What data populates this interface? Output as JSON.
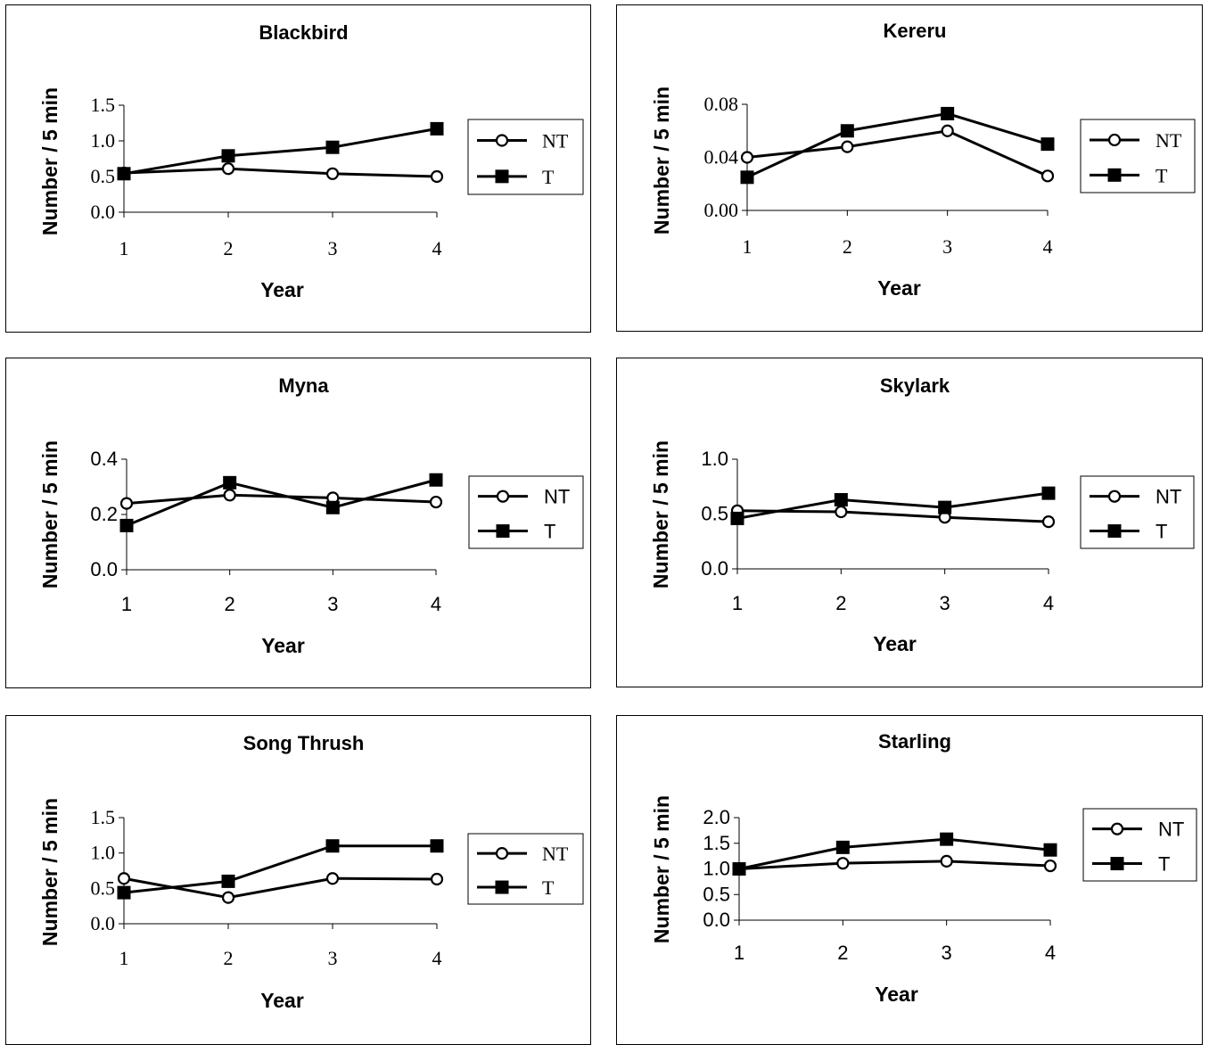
{
  "chart_data": [
    {
      "type": "line",
      "title": "Blackbird",
      "xlabel": "Year",
      "ylabel": "Number / 5 min",
      "x": [
        1,
        2,
        3,
        4
      ],
      "yticks": [
        "0.0",
        "0.5",
        "1.0",
        "1.5"
      ],
      "ylim": [
        0,
        1.5
      ],
      "series": [
        {
          "name": "NT",
          "marker": "open-circle",
          "values": [
            0.55,
            0.61,
            0.54,
            0.5
          ]
        },
        {
          "name": "T",
          "marker": "filled-square",
          "values": [
            0.54,
            0.79,
            0.91,
            1.17
          ]
        }
      ],
      "legend": "right"
    },
    {
      "type": "line",
      "title": "Kereru",
      "xlabel": "Year",
      "ylabel": "Number / 5 min",
      "x": [
        1,
        2,
        3,
        4
      ],
      "yticks": [
        "0.00",
        "0.04",
        "0.08"
      ],
      "ylim": [
        0,
        0.08
      ],
      "series": [
        {
          "name": "NT",
          "marker": "open-circle",
          "values": [
            0.04,
            0.048,
            0.06,
            0.026
          ]
        },
        {
          "name": "T",
          "marker": "filled-square",
          "values": [
            0.025,
            0.06,
            0.073,
            0.05
          ]
        }
      ],
      "legend": "right"
    },
    {
      "type": "line",
      "title": "Myna",
      "xlabel": "Year",
      "ylabel": "Number / 5 min",
      "x": [
        1,
        2,
        3,
        4
      ],
      "yticks": [
        "0.0",
        "0.2",
        "0.4"
      ],
      "ylim": [
        0,
        0.4
      ],
      "series": [
        {
          "name": "NT",
          "marker": "open-circle",
          "values": [
            0.24,
            0.27,
            0.26,
            0.245
          ]
        },
        {
          "name": "T",
          "marker": "filled-square",
          "values": [
            0.16,
            0.315,
            0.225,
            0.325
          ]
        }
      ],
      "legend": "right"
    },
    {
      "type": "line",
      "title": "Skylark",
      "xlabel": "Year",
      "ylabel": "Number / 5 min",
      "x": [
        1,
        2,
        3,
        4
      ],
      "yticks": [
        "0.0",
        "0.5",
        "1.0"
      ],
      "ylim": [
        0,
        1.0
      ],
      "series": [
        {
          "name": "NT",
          "marker": "open-circle",
          "values": [
            0.53,
            0.52,
            0.47,
            0.43
          ]
        },
        {
          "name": "T",
          "marker": "filled-square",
          "values": [
            0.46,
            0.63,
            0.56,
            0.69
          ]
        }
      ],
      "legend": "right"
    },
    {
      "type": "line",
      "title": "Song Thrush",
      "xlabel": "Year",
      "ylabel": "Number / 5 min",
      "x": [
        1,
        2,
        3,
        4
      ],
      "yticks": [
        "0.0",
        "0.5",
        "1.0",
        "1.5"
      ],
      "ylim": [
        0,
        1.5
      ],
      "series": [
        {
          "name": "NT",
          "marker": "open-circle",
          "values": [
            0.64,
            0.37,
            0.64,
            0.63
          ]
        },
        {
          "name": "T",
          "marker": "filled-square",
          "values": [
            0.44,
            0.6,
            1.1,
            1.1
          ]
        }
      ],
      "legend": "right"
    },
    {
      "type": "line",
      "title": "Starling",
      "xlabel": "Year",
      "ylabel": "Number / 5 min",
      "x": [
        1,
        2,
        3,
        4
      ],
      "yticks": [
        "0.0",
        "0.5",
        "1.0",
        "1.5",
        "2.0"
      ],
      "ylim": [
        0,
        2.0
      ],
      "series": [
        {
          "name": "NT",
          "marker": "open-circle",
          "values": [
            1.0,
            1.11,
            1.15,
            1.06
          ]
        },
        {
          "name": "T",
          "marker": "filled-square",
          "values": [
            1.0,
            1.42,
            1.58,
            1.37
          ]
        }
      ],
      "legend": "right"
    }
  ]
}
